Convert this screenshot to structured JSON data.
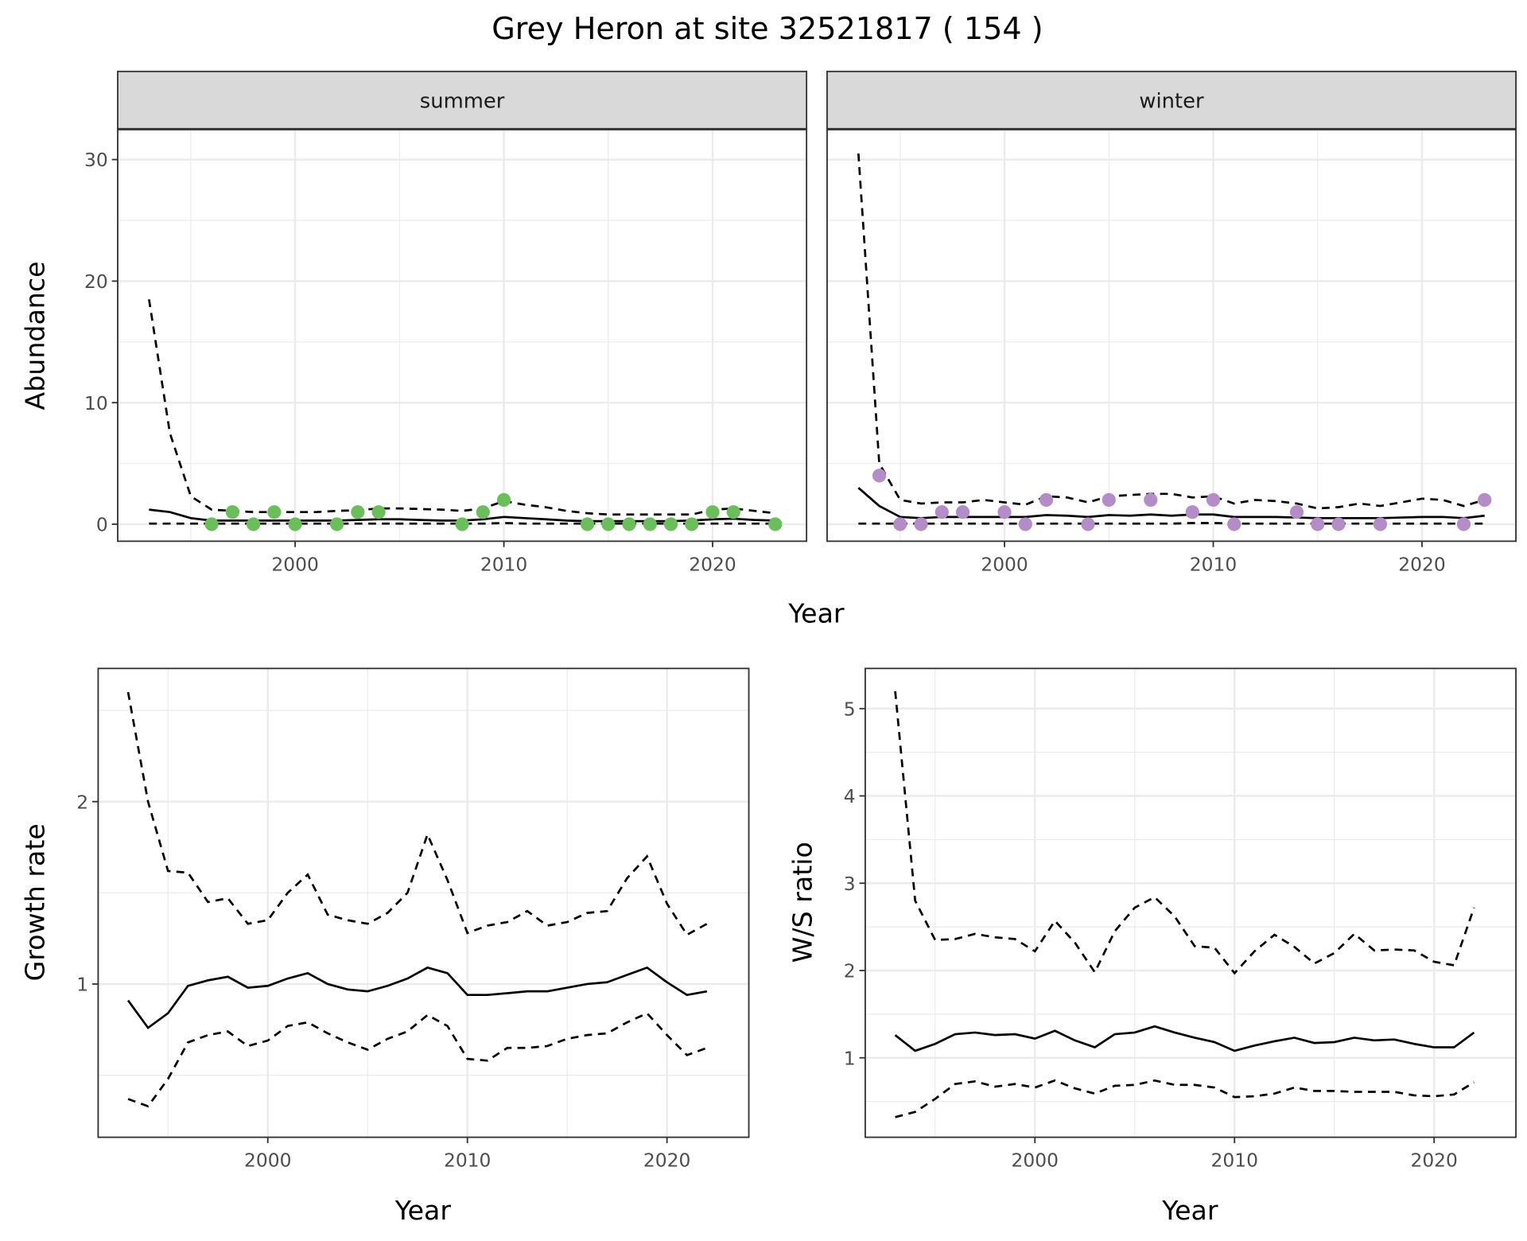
{
  "title": "Grey Heron at site 32521817 ( 154 )",
  "colors": {
    "summer_points": "#6abf5a",
    "winter_points": "#b48cc8",
    "lines": "#000000",
    "strip_bg": "#d9d9d9",
    "grid": "#ebebeb"
  },
  "chart_data": [
    {
      "type": "scatter",
      "facet": "summer",
      "xlabel": "Year",
      "ylabel": "Abundance",
      "xlim": [
        1991.5,
        2024.5
      ],
      "ylim": [
        -1.4,
        32.5
      ],
      "xticks": [
        2000,
        2010,
        2020
      ],
      "yticks": [
        0,
        10,
        20,
        30
      ],
      "grid": true,
      "points": {
        "x": [
          1996,
          1997,
          1998,
          1999,
          2000,
          2002,
          2003,
          2004,
          2008,
          2009,
          2010,
          2014,
          2015,
          2016,
          2017,
          2018,
          2019,
          2020,
          2021,
          2023
        ],
        "y": [
          0,
          1,
          0,
          1,
          0,
          0,
          1,
          1,
          0,
          1,
          2,
          0,
          0,
          0,
          0,
          0,
          0,
          1,
          1,
          0
        ]
      },
      "lines": {
        "x": [
          1993,
          1994,
          1995,
          1996,
          1997,
          1998,
          1999,
          2000,
          2001,
          2002,
          2003,
          2004,
          2005,
          2006,
          2007,
          2008,
          2009,
          2010,
          2011,
          2012,
          2013,
          2014,
          2015,
          2016,
          2017,
          2018,
          2019,
          2020,
          2021,
          2022,
          2023
        ],
        "mean": [
          1.2,
          1.0,
          0.5,
          0.3,
          0.3,
          0.3,
          0.3,
          0.3,
          0.3,
          0.3,
          0.35,
          0.4,
          0.4,
          0.35,
          0.3,
          0.3,
          0.4,
          0.6,
          0.5,
          0.4,
          0.3,
          0.25,
          0.25,
          0.25,
          0.25,
          0.25,
          0.3,
          0.4,
          0.45,
          0.35,
          0.3
        ],
        "upper": [
          18.5,
          7.5,
          2.3,
          1.2,
          1.1,
          1.0,
          1.0,
          1.0,
          1.0,
          1.1,
          1.15,
          1.3,
          1.3,
          1.25,
          1.2,
          1.1,
          1.3,
          1.9,
          1.6,
          1.4,
          1.1,
          0.9,
          0.8,
          0.8,
          0.8,
          0.8,
          0.8,
          1.2,
          1.3,
          1.1,
          0.9
        ],
        "lower": [
          0.05,
          0.05,
          0.05,
          0.05,
          0.05,
          0.05,
          0.05,
          0.05,
          0.05,
          0.05,
          0.05,
          0.05,
          0.05,
          0.05,
          0.05,
          0.05,
          0.05,
          0.1,
          0.05,
          0.05,
          0.05,
          0.05,
          0.05,
          0.05,
          0.05,
          0.05,
          0.05,
          0.05,
          0.05,
          0.05,
          0.05
        ]
      }
    },
    {
      "type": "scatter",
      "facet": "winter",
      "xlabel": "Year",
      "ylabel": "Abundance",
      "xlim": [
        1991.5,
        2024.5
      ],
      "ylim": [
        -1.4,
        32.5
      ],
      "xticks": [
        2000,
        2010,
        2020
      ],
      "yticks": [
        0,
        10,
        20,
        30
      ],
      "grid": true,
      "points": {
        "x": [
          1994,
          1995,
          1996,
          1997,
          1998,
          2000,
          2001,
          2002,
          2004,
          2005,
          2007,
          2009,
          2010,
          2011,
          2014,
          2015,
          2016,
          2018,
          2022,
          2023
        ],
        "y": [
          4,
          0,
          0,
          1,
          1,
          1,
          0,
          2,
          0,
          2,
          2,
          1,
          2,
          0,
          1,
          0,
          0,
          0,
          0,
          2
        ]
      },
      "lines": {
        "x": [
          1993,
          1994,
          1995,
          1996,
          1997,
          1998,
          1999,
          2000,
          2001,
          2002,
          2003,
          2004,
          2005,
          2006,
          2007,
          2008,
          2009,
          2010,
          2011,
          2012,
          2013,
          2014,
          2015,
          2016,
          2017,
          2018,
          2019,
          2020,
          2021,
          2022,
          2023
        ],
        "mean": [
          3.0,
          1.5,
          0.6,
          0.5,
          0.6,
          0.6,
          0.6,
          0.6,
          0.6,
          0.75,
          0.7,
          0.6,
          0.75,
          0.7,
          0.8,
          0.7,
          0.8,
          0.8,
          0.6,
          0.6,
          0.6,
          0.55,
          0.5,
          0.5,
          0.5,
          0.5,
          0.55,
          0.6,
          0.6,
          0.5,
          0.7
        ],
        "upper": [
          30.5,
          5.0,
          2.0,
          1.7,
          1.8,
          1.8,
          2.0,
          1.8,
          1.6,
          2.3,
          2.2,
          1.8,
          2.3,
          2.4,
          2.5,
          2.5,
          2.2,
          2.3,
          1.7,
          2.0,
          1.9,
          1.7,
          1.3,
          1.4,
          1.7,
          1.5,
          1.8,
          2.1,
          2.0,
          1.5,
          2.0
        ],
        "lower": [
          0.05,
          0.05,
          0.05,
          0.05,
          0.05,
          0.05,
          0.05,
          0.05,
          0.05,
          0.05,
          0.05,
          0.05,
          0.05,
          0.05,
          0.05,
          0.05,
          0.1,
          0.1,
          0.05,
          0.05,
          0.05,
          0.05,
          0.05,
          0.05,
          0.05,
          0.05,
          0.05,
          0.05,
          0.05,
          0.05,
          0.05
        ]
      }
    },
    {
      "type": "line",
      "xlabel": "Year",
      "ylabel": "Growth rate",
      "xlim": [
        1991.5,
        2024.1
      ],
      "ylim": [
        0.16,
        2.73
      ],
      "xticks": [
        2000,
        2010,
        2020
      ],
      "yticks": [
        1,
        2
      ],
      "grid": true,
      "lines": {
        "x": [
          1993,
          1994,
          1995,
          1996,
          1997,
          1998,
          1999,
          2000,
          2001,
          2002,
          2003,
          2004,
          2005,
          2006,
          2007,
          2008,
          2009,
          2010,
          2011,
          2012,
          2013,
          2014,
          2015,
          2016,
          2017,
          2018,
          2019,
          2020,
          2021,
          2022
        ],
        "mean": [
          0.91,
          0.76,
          0.84,
          0.99,
          1.02,
          1.04,
          0.98,
          0.99,
          1.03,
          1.06,
          1.0,
          0.97,
          0.96,
          0.99,
          1.03,
          1.09,
          1.06,
          0.94,
          0.94,
          0.95,
          0.96,
          0.96,
          0.98,
          1.0,
          1.01,
          1.05,
          1.09,
          1.01,
          0.94,
          0.96
        ],
        "upper": [
          2.6,
          2.0,
          1.62,
          1.61,
          1.45,
          1.47,
          1.33,
          1.35,
          1.5,
          1.6,
          1.38,
          1.35,
          1.33,
          1.39,
          1.5,
          1.82,
          1.57,
          1.28,
          1.32,
          1.34,
          1.4,
          1.32,
          1.34,
          1.39,
          1.4,
          1.58,
          1.7,
          1.44,
          1.27,
          1.33
        ],
        "lower": [
          0.37,
          0.33,
          0.48,
          0.68,
          0.72,
          0.74,
          0.66,
          0.69,
          0.77,
          0.79,
          0.73,
          0.68,
          0.64,
          0.7,
          0.74,
          0.83,
          0.77,
          0.59,
          0.58,
          0.65,
          0.65,
          0.66,
          0.7,
          0.72,
          0.73,
          0.79,
          0.84,
          0.72,
          0.61,
          0.65
        ]
      }
    },
    {
      "type": "line",
      "xlabel": "Year",
      "ylabel": "W/S ratio",
      "xlim": [
        1991.5,
        2024.1
      ],
      "ylim": [
        0.09,
        5.46
      ],
      "xticks": [
        2000,
        2010,
        2020
      ],
      "yticks": [
        1,
        2,
        3,
        4,
        5
      ],
      "grid": true,
      "lines": {
        "x": [
          1993,
          1994,
          1995,
          1996,
          1997,
          1998,
          1999,
          2000,
          2001,
          2002,
          2003,
          2004,
          2005,
          2006,
          2007,
          2008,
          2009,
          2010,
          2011,
          2012,
          2013,
          2014,
          2015,
          2016,
          2017,
          2018,
          2019,
          2020,
          2021,
          2022
        ],
        "mean": [
          1.26,
          1.08,
          1.16,
          1.27,
          1.29,
          1.26,
          1.27,
          1.22,
          1.31,
          1.2,
          1.12,
          1.27,
          1.29,
          1.36,
          1.29,
          1.23,
          1.18,
          1.08,
          1.14,
          1.19,
          1.23,
          1.17,
          1.18,
          1.23,
          1.2,
          1.21,
          1.16,
          1.12,
          1.12,
          1.29
        ],
        "upper": [
          5.2,
          2.8,
          2.35,
          2.36,
          2.42,
          2.38,
          2.36,
          2.22,
          2.57,
          2.32,
          1.98,
          2.45,
          2.72,
          2.84,
          2.62,
          2.28,
          2.26,
          1.97,
          2.22,
          2.41,
          2.27,
          2.08,
          2.2,
          2.42,
          2.23,
          2.24,
          2.23,
          2.1,
          2.06,
          2.72
        ],
        "lower": [
          0.32,
          0.38,
          0.53,
          0.7,
          0.73,
          0.67,
          0.7,
          0.66,
          0.74,
          0.65,
          0.59,
          0.68,
          0.69,
          0.74,
          0.69,
          0.69,
          0.66,
          0.55,
          0.56,
          0.59,
          0.66,
          0.62,
          0.62,
          0.61,
          0.61,
          0.61,
          0.57,
          0.56,
          0.58,
          0.72
        ]
      }
    }
  ]
}
